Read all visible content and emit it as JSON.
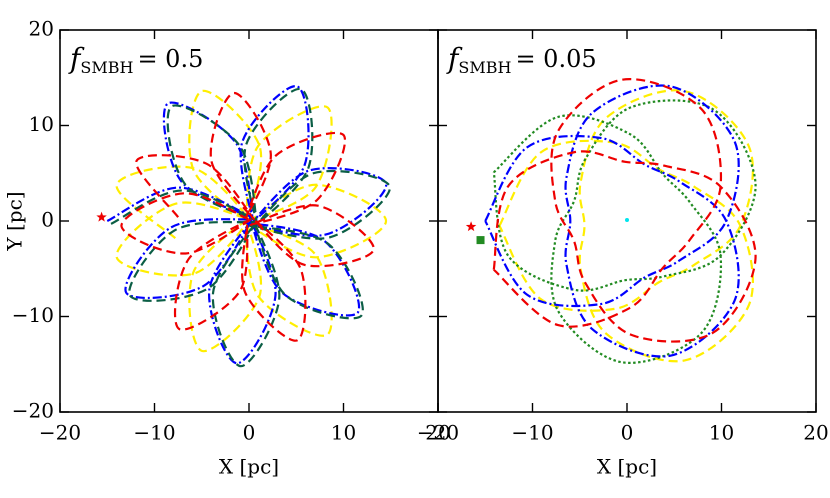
{
  "chart_data": [
    {
      "type": "line",
      "annotation": {
        "symbol": "f",
        "subscript": "SMBH",
        "text": "= 0.5"
      },
      "xlabel": "X [pc]",
      "ylabel": "Y [pc]",
      "xlim": [
        -20,
        20
      ],
      "ylim": [
        -20,
        20
      ],
      "xticks": [
        {
          "value": -20,
          "label": "−20"
        },
        {
          "value": -10,
          "label": "−10"
        },
        0,
        10,
        20
      ],
      "yticks": [
        {
          "value": -20,
          "label": "−20"
        },
        {
          "value": -10,
          "label": "−10"
        },
        0,
        10,
        20
      ],
      "ytick_labels": true,
      "series": [
        {
          "color": "#ffee00",
          "style": "dashed",
          "x": [
            -7.8,
            -14.0,
            -5.8,
            0.3,
            -5.9,
            -5.0,
            1.1,
            -0.2,
            1.0,
            8.3,
            7.1,
            0.4,
            7.1,
            14.5,
            7.1,
            0.1,
            7.1,
            8.3,
            1.0,
            -0.3,
            1.1,
            -5.0,
            -5.9,
            0.2,
            -5.8,
            -14.0,
            -7.8,
            0.0
          ],
          "values": [
            -1.8,
            3.8,
            5.5,
            -0.2,
            5.4,
            13.6,
            7.9,
            0.3,
            7.9,
            11.9,
            3.6,
            0.2,
            3.8,
            0,
            -3.8,
            -0.4,
            -3.6,
            -11.9,
            -7.9,
            -0.1,
            -7.9,
            -13.6,
            -5.4,
            0.4,
            -5.5,
            -3.8,
            1.8,
            0.2
          ]
        },
        {
          "color": "#0000ff",
          "style": "dashdot",
          "x": [
            -15,
            -7.5,
            0.3,
            -7.2,
            -8.6,
            -1.4,
            0.4,
            -0.7,
            5.1,
            5.9,
            0.2,
            6.4,
            14.5,
            8.2,
            -0.3,
            8.0,
            11.5,
            3.5,
            0.1,
            2.8,
            -1.3,
            -4.2,
            0.3,
            -4.8,
            -13.0,
            -8.3,
            0.2
          ],
          "values": [
            0,
            3.5,
            0.4,
            4.2,
            12.3,
            8.2,
            0.2,
            8.3,
            14.1,
            5.9,
            -0.3,
            5.3,
            3.9,
            -1.4,
            -0.2,
            -2.1,
            -9.6,
            -7.5,
            0.3,
            -7.8,
            -14.9,
            -7.2,
            0.1,
            -6.8,
            -7.5,
            -0.7,
            0.2
          ]
        },
        {
          "color": "#0b5e45",
          "style": "dashed",
          "x": [
            -14.6,
            -7.1,
            0.7,
            -6.8,
            -8.2,
            -1.0,
            0.8,
            -0.3,
            5.5,
            6.3,
            0.6,
            6.8,
            14.9,
            8.6,
            0.1,
            8.4,
            11.9,
            3.9,
            0.5,
            3.2,
            -0.9,
            -3.8,
            0.7,
            -4.4,
            -12.6,
            -7.9,
            0.6
          ],
          "values": [
            -0.3,
            3.2,
            0.1,
            3.9,
            12.0,
            7.9,
            -0.1,
            8.0,
            13.8,
            5.6,
            -0.6,
            5.0,
            3.6,
            -1.7,
            -0.5,
            -2.4,
            -9.9,
            -7.8,
            0.0,
            -8.1,
            -15.2,
            -7.5,
            -0.2,
            -7.1,
            -7.8,
            -1.0,
            -0.1
          ]
        },
        {
          "color": "#ee0000",
          "style": "dashed",
          "x": [
            -7.5,
            -11.9,
            -4.5,
            0.5,
            -4.0,
            -1.6,
            2.3,
            -0.3,
            2.9,
            10.0,
            7.2,
            0.2,
            7.3,
            13.2,
            5.9,
            0.6,
            5.5,
            5.1,
            -0.4,
            -0.2,
            -1.0,
            -7.4,
            -6.4,
            0.4,
            -6.7,
            -13.5,
            -6.9,
            0.1
          ],
          "values": [
            0.4,
            6.3,
            6.0,
            0.2,
            6.4,
            13.4,
            7.1,
            0.4,
            6.9,
            9.0,
            2.2,
            -0.4,
            1.6,
            -3.0,
            -4.6,
            0.1,
            -5.1,
            -12.5,
            -7.5,
            -0.5,
            -7.4,
            -11.3,
            -4.0,
            0.3,
            -3.4,
            -0.5,
            2.9,
            0.1
          ]
        }
      ],
      "markers": [
        {
          "x": -15.6,
          "y": 0.4,
          "color": "#ee0000",
          "shape": "star"
        }
      ]
    },
    {
      "type": "line",
      "annotation": {
        "symbol": "f",
        "subscript": "SMBH",
        "text": "= 0.05"
      },
      "xlabel": "X [pc]",
      "xlim": [
        -20,
        20
      ],
      "ylim": [
        -20,
        20
      ],
      "xticks": [
        {
          "value": -20,
          "label": "−20"
        },
        {
          "value": -10,
          "label": "−10"
        },
        0,
        10,
        20
      ],
      "yticks": [
        -20,
        -10,
        0,
        10,
        20
      ],
      "ytick_labels": false,
      "series": [
        {
          "color": "#ffee00",
          "style": "dashed",
          "x": [
            -13.5,
            -9.1,
            -1.3,
            3.4,
            7.1,
            12.0,
            12.9,
            6.1,
            -2.2,
            -4.9,
            -4.5,
            -4.9,
            -2.2,
            6.1,
            12.9,
            12.0,
            7.1,
            3.4,
            -1.3,
            -9.1,
            -13.5
          ],
          "values": [
            -0.5,
            7.2,
            8.2,
            5.4,
            3.6,
            -0.5,
            -8.8,
            -14.6,
            -11.8,
            -5.1,
            -0.5,
            4.1,
            10.8,
            13.6,
            7.8,
            -0.5,
            -4.6,
            -6.4,
            -9.2,
            -8.2,
            -0.5
          ]
        },
        {
          "color": "#228b22",
          "style": "dotted",
          "x": [
            -14.1,
            -7.3,
            0.3,
            3.8,
            6.7,
            9.9,
            7.9,
            -0.5,
            -7.3,
            -7.6,
            -5.6,
            -4.4,
            0.4,
            9.1,
            13.6,
            9.9,
            3.9,
            -0.2,
            -5.6,
            -12.6,
            -14.1
          ],
          "values": [
            5.1,
            10.9,
            9.1,
            4.9,
            1.9,
            -3.6,
            -11.7,
            -14.8,
            -9.4,
            -2.1,
            2.1,
            6.5,
            11.9,
            11.7,
            3.9,
            -3.6,
            -5.8,
            -6.2,
            -7.2,
            -3.6,
            5.1
          ]
        },
        {
          "color": "#0000ff",
          "style": "dashdot",
          "x": [
            -15.0,
            -10.6,
            -2.8,
            1.9,
            5.6,
            10.5,
            11.4,
            4.6,
            -3.7,
            -6.4,
            -6.0,
            -6.4,
            -3.7,
            4.6,
            11.4,
            10.5,
            5.6,
            1.9,
            -2.8,
            -10.6,
            -15.0
          ],
          "values": [
            0,
            7.7,
            8.7,
            5.9,
            4.1,
            0,
            -8.3,
            -14.1,
            -11.3,
            -4.6,
            0,
            4.6,
            11.3,
            14.1,
            8.3,
            0,
            -4.1,
            -5.9,
            -8.7,
            -7.7,
            0
          ]
        },
        {
          "color": "#ee0000",
          "style": "dashed",
          "x": [
            -14.1,
            -12.6,
            -5.6,
            -0.2,
            3.9,
            9.9,
            13.6,
            9.1,
            0.4,
            -4.4,
            -5.6,
            -7.6,
            -7.3,
            -0.5,
            7.9,
            9.9,
            6.7,
            3.8,
            0.3,
            -7.3,
            -14.1
          ],
          "values": [
            -5.1,
            3.6,
            7.2,
            6.2,
            5.8,
            3.6,
            -3.9,
            -11.7,
            -11.9,
            -6.5,
            -2.1,
            2.1,
            9.4,
            14.8,
            11.7,
            3.6,
            -1.9,
            -4.9,
            -9.1,
            -10.9,
            -5.1
          ]
        }
      ],
      "markers": [
        {
          "x": -16.5,
          "y": -0.6,
          "color": "#ee0000",
          "shape": "star"
        },
        {
          "x": -15.5,
          "y": -2.0,
          "color": "#228b22",
          "shape": "square"
        },
        {
          "x": 0,
          "y": 0.1,
          "color": "#00e5ee",
          "shape": "dot"
        }
      ]
    }
  ]
}
